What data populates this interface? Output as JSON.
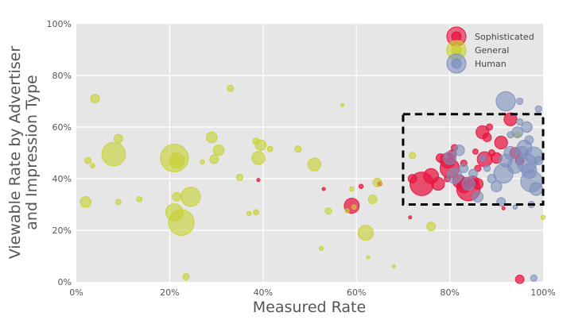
{
  "chart_data": {
    "type": "scatter",
    "title": "",
    "xlabel": "Measured Rate",
    "ylabel_lines": [
      "Viewable Rate by Advertiser",
      "and Impression Type"
    ],
    "xlim": [
      0,
      100
    ],
    "ylim": [
      0,
      100
    ],
    "x_ticks": [
      0,
      20,
      40,
      60,
      80,
      100
    ],
    "y_ticks": [
      0,
      20,
      40,
      60,
      80,
      100
    ],
    "x_tick_labels": [
      "0%",
      "20%",
      "40%",
      "60%",
      "80%",
      "100%"
    ],
    "y_tick_labels": [
      "0%",
      "20%",
      "40%",
      "60%",
      "80%",
      "100%"
    ],
    "grid": true,
    "legend_position": "top-right",
    "colors": {
      "background": "#e6e6e6",
      "grid": "#ffffff",
      "box": "#000000"
    },
    "highlight_region": {
      "x": [
        70,
        100
      ],
      "y": [
        30,
        65
      ]
    },
    "series": [
      {
        "name": "Sophisticated",
        "color": "#e8123f",
        "points": [
          {
            "x": 59,
            "y": 29.5,
            "s": 7
          },
          {
            "x": 74,
            "y": 38,
            "s": 11
          },
          {
            "x": 76,
            "y": 41,
            "s": 7
          },
          {
            "x": 77.5,
            "y": 38,
            "s": 6
          },
          {
            "x": 79.5,
            "y": 47,
            "s": 7
          },
          {
            "x": 80,
            "y": 44,
            "s": 9
          },
          {
            "x": 81,
            "y": 52,
            "s": 3
          },
          {
            "x": 82,
            "y": 39,
            "s": 6
          },
          {
            "x": 83,
            "y": 37,
            "s": 6
          },
          {
            "x": 84,
            "y": 36,
            "s": 11
          },
          {
            "x": 85,
            "y": 39,
            "s": 5
          },
          {
            "x": 86,
            "y": 38,
            "s": 5
          },
          {
            "x": 87,
            "y": 58,
            "s": 6
          },
          {
            "x": 87.5,
            "y": 47.5,
            "s": 7
          },
          {
            "x": 88,
            "y": 56,
            "s": 4
          },
          {
            "x": 89,
            "y": 50,
            "s": 3
          },
          {
            "x": 90,
            "y": 48,
            "s": 5
          },
          {
            "x": 91,
            "y": 54,
            "s": 6
          },
          {
            "x": 93,
            "y": 63,
            "s": 6
          },
          {
            "x": 94,
            "y": 50,
            "s": 5
          },
          {
            "x": 95,
            "y": 47,
            "s": 4
          },
          {
            "x": 95,
            "y": 1,
            "s": 4
          },
          {
            "x": 83,
            "y": 46,
            "s": 3
          },
          {
            "x": 78,
            "y": 48,
            "s": 4
          },
          {
            "x": 86,
            "y": 44,
            "s": 3
          },
          {
            "x": 72,
            "y": 40,
            "s": 4
          },
          {
            "x": 80.5,
            "y": 49.5,
            "s": 4
          },
          {
            "x": 88.5,
            "y": 60,
            "s": 3
          },
          {
            "x": 61,
            "y": 37,
            "s": 2
          },
          {
            "x": 39,
            "y": 39.5,
            "s": 1.5
          },
          {
            "x": 53,
            "y": 36,
            "s": 1.5
          },
          {
            "x": 65,
            "y": 38,
            "s": 2
          },
          {
            "x": 71.5,
            "y": 25,
            "s": 1.5
          },
          {
            "x": 79.5,
            "y": 40,
            "s": 3
          },
          {
            "x": 85.5,
            "y": 50.5,
            "s": 2.5
          },
          {
            "x": 91.5,
            "y": 28.5,
            "s": 1.5
          }
        ]
      },
      {
        "name": "General",
        "color": "#c7d12b",
        "points": [
          {
            "x": 2,
            "y": 31,
            "s": 5
          },
          {
            "x": 2.5,
            "y": 47,
            "s": 3
          },
          {
            "x": 3.5,
            "y": 45,
            "s": 2
          },
          {
            "x": 4,
            "y": 71,
            "s": 4
          },
          {
            "x": 8,
            "y": 49.5,
            "s": 11
          },
          {
            "x": 9,
            "y": 55.5,
            "s": 4
          },
          {
            "x": 9,
            "y": 31,
            "s": 2.5
          },
          {
            "x": 13.5,
            "y": 32,
            "s": 2.5
          },
          {
            "x": 21,
            "y": 48,
            "s": 13
          },
          {
            "x": 21,
            "y": 27,
            "s": 8
          },
          {
            "x": 21.5,
            "y": 33,
            "s": 4
          },
          {
            "x": 21.5,
            "y": 47,
            "s": 7
          },
          {
            "x": 22.5,
            "y": 23,
            "s": 12
          },
          {
            "x": 23.5,
            "y": 2,
            "s": 3
          },
          {
            "x": 24.5,
            "y": 33,
            "s": 9
          },
          {
            "x": 27,
            "y": 46.5,
            "s": 2
          },
          {
            "x": 29,
            "y": 56,
            "s": 5
          },
          {
            "x": 29.5,
            "y": 47.5,
            "s": 4
          },
          {
            "x": 30.5,
            "y": 51,
            "s": 5
          },
          {
            "x": 33,
            "y": 75,
            "s": 3
          },
          {
            "x": 35,
            "y": 40.5,
            "s": 3
          },
          {
            "x": 37,
            "y": 26.5,
            "s": 2
          },
          {
            "x": 38.5,
            "y": 54.5,
            "s": 3
          },
          {
            "x": 38.5,
            "y": 27,
            "s": 2.5
          },
          {
            "x": 39,
            "y": 48,
            "s": 6
          },
          {
            "x": 39.5,
            "y": 53,
            "s": 5
          },
          {
            "x": 41.5,
            "y": 51.5,
            "s": 2.5
          },
          {
            "x": 47.5,
            "y": 51.5,
            "s": 3
          },
          {
            "x": 51,
            "y": 45.5,
            "s": 6
          },
          {
            "x": 52.5,
            "y": 13,
            "s": 2
          },
          {
            "x": 54,
            "y": 27.5,
            "s": 3
          },
          {
            "x": 57,
            "y": 68.5,
            "s": 1.5
          },
          {
            "x": 58,
            "y": 27.5,
            "s": 2
          },
          {
            "x": 59,
            "y": 36,
            "s": 2
          },
          {
            "x": 59.5,
            "y": 29,
            "s": 2
          },
          {
            "x": 62,
            "y": 19,
            "s": 7
          },
          {
            "x": 62.5,
            "y": 9.5,
            "s": 1.5
          },
          {
            "x": 63.5,
            "y": 32,
            "s": 4
          },
          {
            "x": 64.5,
            "y": 38.5,
            "s": 4
          },
          {
            "x": 68,
            "y": 6,
            "s": 1.5
          },
          {
            "x": 72,
            "y": 49,
            "s": 3
          },
          {
            "x": 76,
            "y": 21.5,
            "s": 4
          },
          {
            "x": 94.5,
            "y": 57,
            "s": 3
          },
          {
            "x": 100,
            "y": 25,
            "s": 2
          }
        ]
      },
      {
        "name": "Human",
        "color": "#7d8fbd",
        "points": [
          {
            "x": 80,
            "y": 48,
            "s": 6
          },
          {
            "x": 81,
            "y": 41,
            "s": 7
          },
          {
            "x": 82,
            "y": 51,
            "s": 5
          },
          {
            "x": 83,
            "y": 44,
            "s": 4
          },
          {
            "x": 84,
            "y": 38,
            "s": 6
          },
          {
            "x": 85,
            "y": 42,
            "s": 4
          },
          {
            "x": 86,
            "y": 33,
            "s": 5
          },
          {
            "x": 88,
            "y": 44,
            "s": 3
          },
          {
            "x": 89,
            "y": 40,
            "s": 4
          },
          {
            "x": 90,
            "y": 37,
            "s": 5
          },
          {
            "x": 91,
            "y": 31,
            "s": 4
          },
          {
            "x": 91.5,
            "y": 42,
            "s": 9
          },
          {
            "x": 92,
            "y": 70,
            "s": 9
          },
          {
            "x": 92,
            "y": 47,
            "s": 6
          },
          {
            "x": 93,
            "y": 50,
            "s": 6
          },
          {
            "x": 94,
            "y": 45,
            "s": 7
          },
          {
            "x": 94.5,
            "y": 58,
            "s": 5
          },
          {
            "x": 95,
            "y": 70,
            "s": 3
          },
          {
            "x": 95.5,
            "y": 50,
            "s": 6
          },
          {
            "x": 96,
            "y": 52,
            "s": 7
          },
          {
            "x": 96.5,
            "y": 46,
            "s": 9
          },
          {
            "x": 97,
            "y": 43,
            "s": 7
          },
          {
            "x": 97,
            "y": 55,
            "s": 4
          },
          {
            "x": 97.5,
            "y": 39,
            "s": 10
          },
          {
            "x": 98,
            "y": 49,
            "s": 8
          },
          {
            "x": 98.5,
            "y": 36,
            "s": 6
          },
          {
            "x": 96.5,
            "y": 60,
            "s": 5
          },
          {
            "x": 99,
            "y": 67,
            "s": 3
          },
          {
            "x": 97.5,
            "y": 30,
            "s": 3
          },
          {
            "x": 98,
            "y": 1.5,
            "s": 3
          },
          {
            "x": 93,
            "y": 57,
            "s": 3
          },
          {
            "x": 95,
            "y": 62,
            "s": 3
          },
          {
            "x": 99,
            "y": 47,
            "s": 4
          },
          {
            "x": 94,
            "y": 29,
            "s": 2
          },
          {
            "x": 87,
            "y": 48,
            "s": 3
          }
        ]
      }
    ]
  }
}
